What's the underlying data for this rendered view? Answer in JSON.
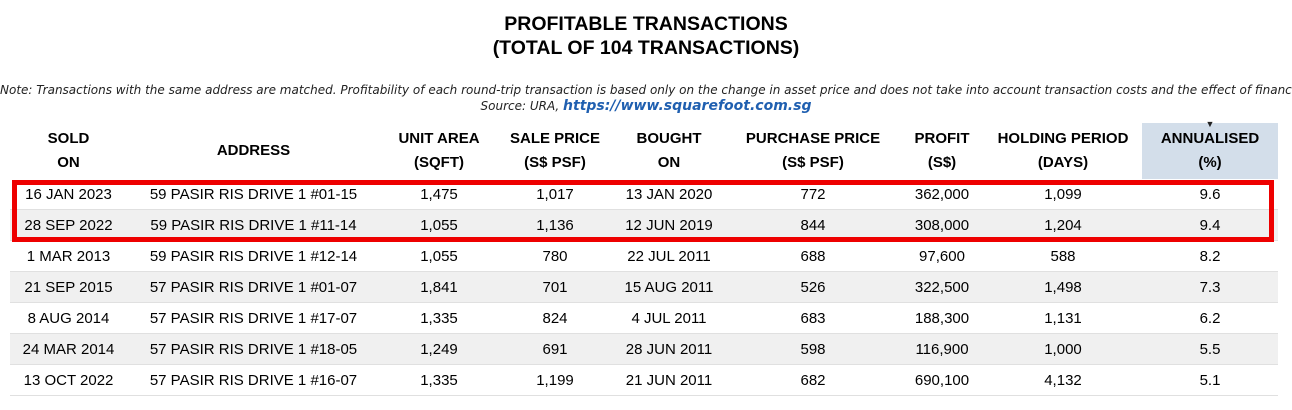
{
  "title": {
    "line1": "PROFITABLE TRANSACTIONS",
    "line2": "(TOTAL OF 104 TRANSACTIONS)"
  },
  "note": {
    "text": "Note: Transactions with the same address are matched. Profitability of each round-trip transaction is based only on the change in asset price and does not take into account transaction costs and the effect of financing.",
    "source_label": "Source: URA,",
    "link": "https://www.squarefoot.com.sg"
  },
  "columns": [
    {
      "line1": "SOLD",
      "line2": "ON"
    },
    {
      "line1": "ADDRESS",
      "line2": ""
    },
    {
      "line1": "UNIT AREA",
      "line2": "(SQFT)"
    },
    {
      "line1": "SALE PRICE",
      "line2": "(S$ PSF)"
    },
    {
      "line1": "BOUGHT",
      "line2": "ON"
    },
    {
      "line1": "PURCHASE PRICE",
      "line2": "(S$ PSF)"
    },
    {
      "line1": "PROFIT",
      "line2": "(S$)"
    },
    {
      "line1": "HOLDING PERIOD",
      "line2": "(DAYS)"
    },
    {
      "line1": "ANNUALISED",
      "line2": "(%)"
    }
  ],
  "sort_indicator": "▼",
  "rows": [
    [
      "16 JAN 2023",
      "59 PASIR RIS DRIVE 1 #01-15",
      "1,475",
      "1,017",
      "13 JAN 2020",
      "772",
      "362,000",
      "1,099",
      "9.6"
    ],
    [
      "28 SEP 2022",
      "59 PASIR RIS DRIVE 1 #11-14",
      "1,055",
      "1,136",
      "12 JUN 2019",
      "844",
      "308,000",
      "1,204",
      "9.4"
    ],
    [
      "1 MAR 2013",
      "59 PASIR RIS DRIVE 1 #12-14",
      "1,055",
      "780",
      "22 JUL 2011",
      "688",
      "97,600",
      "588",
      "8.2"
    ],
    [
      "21 SEP 2015",
      "57 PASIR RIS DRIVE 1 #01-07",
      "1,841",
      "701",
      "15 AUG 2011",
      "526",
      "322,500",
      "1,498",
      "7.3"
    ],
    [
      "8 AUG 2014",
      "57 PASIR RIS DRIVE 1 #17-07",
      "1,335",
      "824",
      "4 JUL 2011",
      "683",
      "188,300",
      "1,131",
      "6.2"
    ],
    [
      "24 MAR 2014",
      "57 PASIR RIS DRIVE 1 #18-05",
      "1,249",
      "691",
      "28 JUN 2011",
      "598",
      "116,900",
      "1,000",
      "5.5"
    ],
    [
      "13 OCT 2022",
      "57 PASIR RIS DRIVE 1 #16-07",
      "1,335",
      "1,199",
      "21 JUN 2011",
      "682",
      "690,100",
      "4,132",
      "5.1"
    ]
  ],
  "colors": {
    "highlight": "#ee0000",
    "sorted_header_bg": "#d3deea",
    "link": "#1f5fb0",
    "alt_row": "#f0f0f0"
  }
}
